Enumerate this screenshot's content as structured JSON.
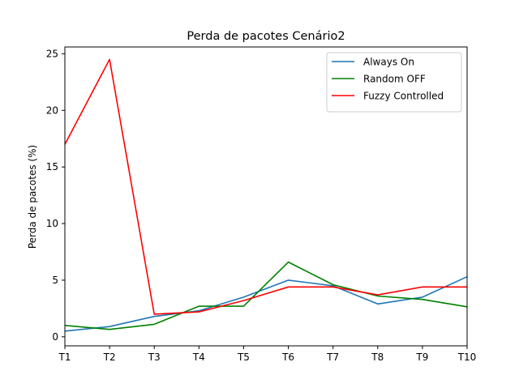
{
  "chart_data": {
    "type": "line",
    "title": "Perda de pacotes Cenário2",
    "xlabel": "",
    "ylabel": "Perda de pacotes (%)",
    "categories": [
      "T1",
      "T2",
      "T3",
      "T4",
      "T5",
      "T6",
      "T7",
      "T8",
      "T9",
      "T10"
    ],
    "ylim": [
      -0.8,
      25.6
    ],
    "yticks": [
      0,
      5,
      10,
      15,
      20,
      25
    ],
    "grid": false,
    "legend_position": "top-right",
    "series": [
      {
        "name": "Always On",
        "color": "#1f77b4",
        "values": [
          0.5,
          0.9,
          1.8,
          2.3,
          3.5,
          5.0,
          4.5,
          2.9,
          3.5,
          5.3
        ]
      },
      {
        "name": "Random OFF",
        "color": "#008000",
        "values": [
          1.0,
          0.65,
          1.1,
          2.7,
          2.7,
          6.6,
          4.6,
          3.6,
          3.3,
          2.65
        ]
      },
      {
        "name": "Fuzzy Controlled",
        "color": "#ff0000",
        "values": [
          17.0,
          24.5,
          2.0,
          2.2,
          3.2,
          4.4,
          4.4,
          3.7,
          4.4,
          4.4
        ]
      }
    ]
  }
}
